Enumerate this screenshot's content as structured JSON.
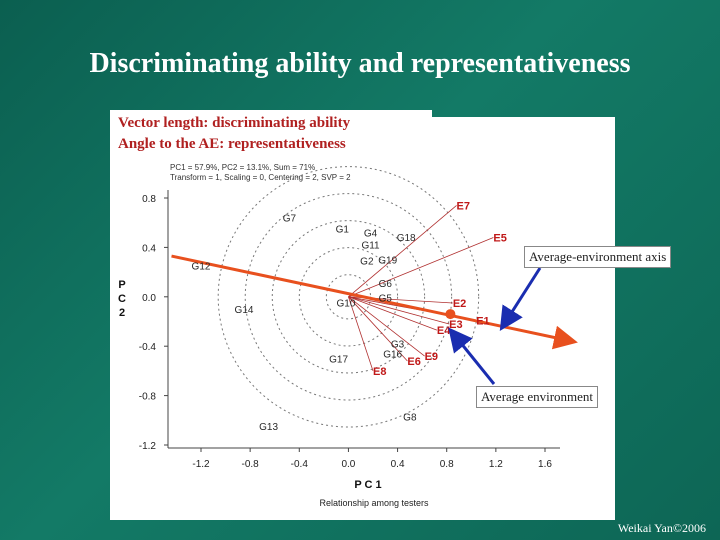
{
  "slide": {
    "title": "Discriminating ability and representativeness",
    "caption_line1": "Vector length: discriminating ability",
    "caption_line2": "Angle to the AE: representativeness",
    "callout_axis": "Average-environment axis",
    "callout_env": "Average environment",
    "credit": "Weikai Yan©2006"
  },
  "chart_data": {
    "type": "scatter",
    "stats_line1": "PC1 = 57.9%, PC2 = 13.1%, Sum = 71%",
    "stats_line2": "Transform = 1, Scaling = 0, Centering = 2, SVP = 2",
    "xlabel": "P C 1",
    "ylabel": "P C 2",
    "footer": "Relationship among testers",
    "xlim": [
      -1.2,
      1.6
    ],
    "ylim": [
      -1.2,
      0.8
    ],
    "x_ticks": [
      "-1.2",
      "-0.8",
      "-0.4",
      "0.0",
      "0.4",
      "0.8",
      "1.2",
      "1.6"
    ],
    "y_ticks": [
      "0.8",
      "0.4",
      "0.0",
      "-0.4",
      "-0.8",
      "-1.2"
    ],
    "x_tick_values": [
      -1.2,
      -0.8,
      -0.4,
      0.0,
      0.4,
      0.8,
      1.2,
      1.6
    ],
    "y_tick_values": [
      0.8,
      0.4,
      0.0,
      -0.4,
      -0.8,
      -1.2
    ],
    "genotypes": [
      {
        "label": "G1",
        "x": -0.05,
        "y": 0.52
      },
      {
        "label": "G4",
        "x": 0.18,
        "y": 0.49
      },
      {
        "label": "G18",
        "x": 0.47,
        "y": 0.45
      },
      {
        "label": "G7",
        "x": -0.48,
        "y": 0.61
      },
      {
        "label": "G11",
        "x": 0.18,
        "y": 0.39
      },
      {
        "label": "G2",
        "x": 0.15,
        "y": 0.26
      },
      {
        "label": "G19",
        "x": 0.32,
        "y": 0.27
      },
      {
        "label": "G12",
        "x": -1.2,
        "y": 0.22
      },
      {
        "label": "G6",
        "x": 0.3,
        "y": 0.08
      },
      {
        "label": "G5",
        "x": 0.3,
        "y": -0.04
      },
      {
        "label": "G10",
        "x": -0.02,
        "y": -0.08
      },
      {
        "label": "G14",
        "x": -0.85,
        "y": -0.13
      },
      {
        "label": "G3",
        "x": 0.4,
        "y": -0.41
      },
      {
        "label": "G16",
        "x": 0.36,
        "y": -0.49
      },
      {
        "label": "G17",
        "x": -0.08,
        "y": -0.53
      },
      {
        "label": "G8",
        "x": 0.5,
        "y": -1.0
      },
      {
        "label": "G13",
        "x": -0.65,
        "y": -1.08
      }
    ],
    "environments": [
      {
        "label": "E7",
        "x": 0.88,
        "y": 0.74
      },
      {
        "label": "E5",
        "x": 1.18,
        "y": 0.48
      },
      {
        "label": "E2",
        "x": 0.85,
        "y": -0.05
      },
      {
        "label": "E1",
        "x": 1.04,
        "y": -0.19
      },
      {
        "label": "E3",
        "x": 0.82,
        "y": -0.22
      },
      {
        "label": "E4",
        "x": 0.72,
        "y": -0.27
      },
      {
        "label": "E9",
        "x": 0.62,
        "y": -0.48
      },
      {
        "label": "E6",
        "x": 0.48,
        "y": -0.52
      },
      {
        "label": "E8",
        "x": 0.2,
        "y": -0.6
      }
    ],
    "average_environment": {
      "x": 0.83,
      "y": -0.14
    },
    "ae_axis": {
      "x1": -1.44,
      "y1": 0.33,
      "x2": 1.82,
      "y2": -0.36
    },
    "circle_radii": [
      0.18,
      0.4,
      0.62,
      0.84,
      1.06
    ],
    "colors": {
      "genotype": "#2a2a2a",
      "environment": "#c01818",
      "axis": "#e8501e",
      "callout_arrow": "#1a2db0"
    }
  }
}
